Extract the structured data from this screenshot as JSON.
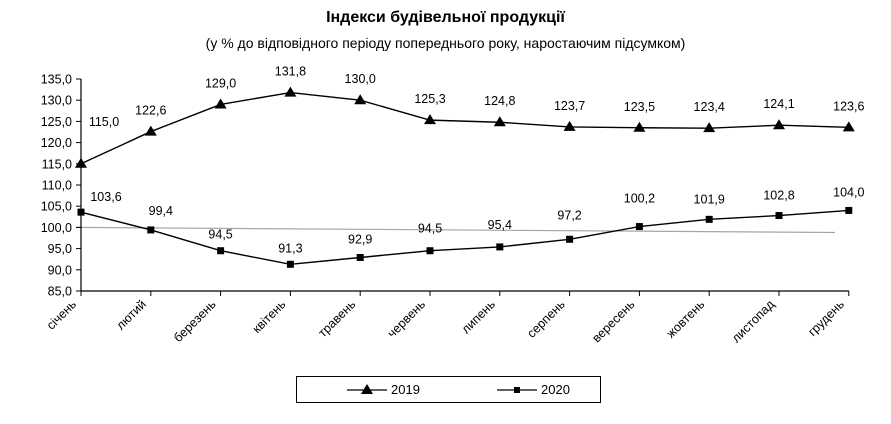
{
  "chart_data": {
    "type": "line",
    "title": "Індекси будівельної продукції",
    "subtitle": "(у % до відповідного періоду попереднього року, наростаючим підсумком)",
    "xlabel": "",
    "ylabel": "",
    "categories": [
      "січень",
      "лютий",
      "березень",
      "квітень",
      "травень",
      "червень",
      "липень",
      "серпень",
      "вересень",
      "жовтень",
      "листопад",
      "грудень"
    ],
    "series": [
      {
        "name": "2019",
        "marker": "triangle",
        "color": "#000000",
        "values": [
          115.0,
          122.6,
          129.0,
          131.8,
          130.0,
          125.3,
          124.8,
          123.7,
          123.5,
          123.4,
          124.1,
          123.6
        ],
        "labels": [
          "115,0",
          "122,6",
          "129,0",
          "131,8",
          "130,0",
          "125,3",
          "124,8",
          "123,7",
          "123,5",
          "123,4",
          "124,1",
          "123,6"
        ]
      },
      {
        "name": "2020",
        "marker": "square",
        "color": "#000000",
        "values": [
          103.6,
          99.4,
          94.5,
          91.3,
          92.9,
          94.5,
          95.4,
          97.2,
          100.2,
          101.9,
          102.8,
          104.0
        ],
        "labels": [
          "103,6",
          "99,4",
          "94,5",
          "91,3",
          "92,9",
          "94,5",
          "95,4",
          "97,2",
          "100,2",
          "101,9",
          "102,8",
          "104,0"
        ]
      }
    ],
    "reference_line": {
      "color": "#a6a6a6",
      "from": 100.0,
      "to": 98.8
    },
    "ylim": [
      85,
      135
    ],
    "yticks": [
      85,
      90,
      95,
      100,
      105,
      110,
      115,
      120,
      125,
      130,
      135
    ],
    "ytick_labels": [
      "85,0",
      "90,0",
      "95,0",
      "100,0",
      "105,0",
      "110,0",
      "115,0",
      "120,0",
      "125,0",
      "130,0",
      "135,0"
    ],
    "grid": false,
    "legend_position": "bottom"
  },
  "legend": {
    "items": [
      {
        "label": "2019",
        "marker": "triangle"
      },
      {
        "label": "2020",
        "marker": "square"
      }
    ]
  }
}
